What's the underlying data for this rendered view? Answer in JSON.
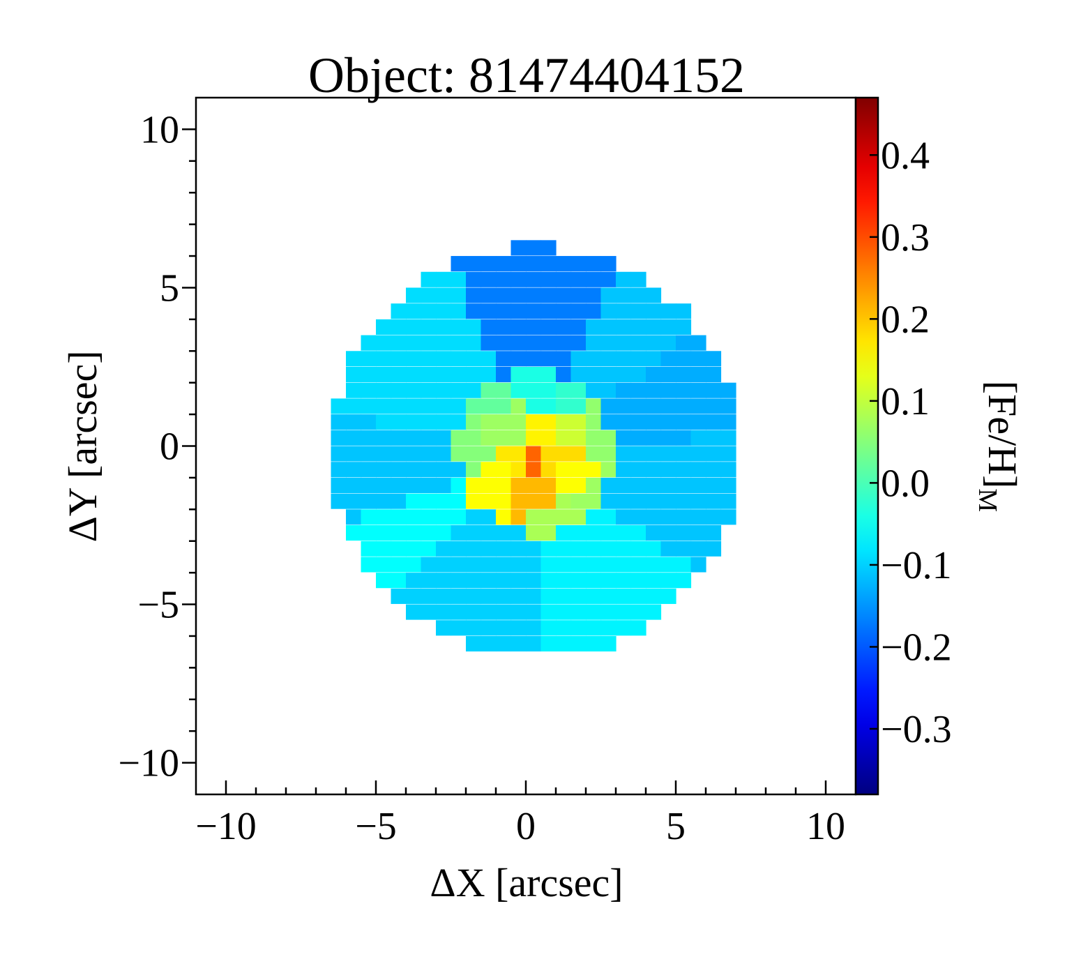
{
  "chart_data": {
    "type": "heatmap",
    "title": "Object: 81474404152",
    "xlabel": "ΔX [arcsec]",
    "ylabel": "ΔY [arcsec]",
    "xlim": [
      -11,
      11
    ],
    "ylim": [
      -11,
      11
    ],
    "x_ticks": [
      -10,
      -5,
      0,
      5,
      10
    ],
    "y_ticks": [
      -10,
      -5,
      0,
      5,
      10
    ],
    "x_tick_labels": [
      "−10",
      "−5",
      "0",
      "5",
      "10"
    ],
    "y_tick_labels": [
      "−10",
      "−5",
      "0",
      "5",
      "10"
    ],
    "colorbar": {
      "label": "[Fe/H]",
      "label_subscript": "M",
      "range": [
        -0.38,
        0.47
      ],
      "ticks": [
        0.4,
        0.3,
        0.2,
        0.1,
        0.0,
        -0.1,
        -0.2,
        -0.3
      ],
      "tick_labels": [
        "0.4",
        "0.3",
        "0.2",
        "0.1",
        "0.0",
        "−0.1",
        "−0.2",
        "−0.3"
      ],
      "colormap": "jet"
    },
    "map": {
      "center": [
        0.3,
        -0.2
      ],
      "semi_axes": [
        6.8,
        6.5
      ],
      "outer_sectors": [
        {
          "from_deg": 65,
          "to_deg": 115,
          "value": -0.17
        },
        {
          "from_deg": 35,
          "to_deg": 65,
          "value": -0.11
        },
        {
          "from_deg": 5,
          "to_deg": 35,
          "value": -0.13
        },
        {
          "from_deg": -35,
          "to_deg": 5,
          "value": -0.11
        },
        {
          "from_deg": -90,
          "to_deg": -35,
          "value": -0.07
        },
        {
          "from_deg": -135,
          "to_deg": -90,
          "value": -0.1
        },
        {
          "from_deg": -160,
          "to_deg": -135,
          "value": -0.06
        },
        {
          "from_deg": -190,
          "to_deg": -160,
          "value": -0.11
        },
        {
          "from_deg": 115,
          "to_deg": 170,
          "value": -0.09
        }
      ],
      "inner_bins": [
        {
          "x": 0.4,
          "y": -0.3,
          "value": 0.28
        },
        {
          "x": -0.2,
          "y": -0.4,
          "value": 0.17
        },
        {
          "x": 0.9,
          "y": -0.4,
          "value": 0.18
        },
        {
          "x": 0.4,
          "y": 0.3,
          "value": 0.16
        },
        {
          "x": 0.3,
          "y": -1.3,
          "value": 0.21
        },
        {
          "x": -0.9,
          "y": -1.2,
          "value": 0.15
        },
        {
          "x": 1.5,
          "y": -1.1,
          "value": 0.15
        },
        {
          "x": 1.6,
          "y": 0.8,
          "value": 0.11
        },
        {
          "x": -0.8,
          "y": 0.6,
          "value": 0.07
        },
        {
          "x": 2.1,
          "y": -1.6,
          "value": 0.07
        },
        {
          "x": 1.1,
          "y": -2.4,
          "value": 0.08
        },
        {
          "x": -1.8,
          "y": 0.0,
          "value": 0.05
        },
        {
          "x": 2.3,
          "y": 0.5,
          "value": 0.06
        },
        {
          "x": -1.3,
          "y": 1.4,
          "value": 0.02
        },
        {
          "x": 0.5,
          "y": 1.7,
          "value": -0.04
        },
        {
          "x": 1.4,
          "y": 1.5,
          "value": -0.02
        }
      ]
    }
  }
}
